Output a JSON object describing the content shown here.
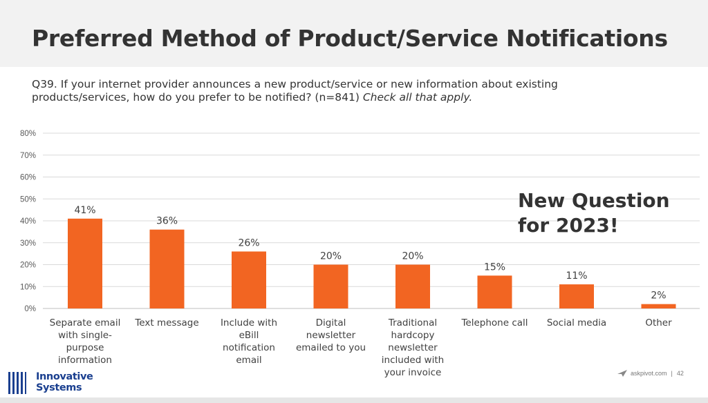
{
  "slide": {
    "title": "Preferred Method of Product/Service Notifications",
    "question": "Q39. If your internet provider announces a new product/service or new information about existing products/services, how do you prefer to be notified? (n=841)",
    "question_note": "Check all that apply.",
    "callout_line1": "New Question",
    "callout_line2": "for 2023!",
    "logo_line1": "Innovative",
    "logo_line2": "Systems",
    "footer_site": "askpivot.com",
    "footer_sep": "|",
    "page_number": "42"
  },
  "colors": {
    "bar": "#f26522",
    "title_band": "#f2f2f2",
    "logo": "#1a3f8f"
  },
  "chart_data": {
    "type": "bar",
    "categories": [
      [
        "Separate email",
        "with single-",
        "purpose",
        "information"
      ],
      [
        "Text message"
      ],
      [
        "Include with",
        "eBill",
        "notification",
        "email"
      ],
      [
        "Digital",
        "newsletter",
        "emailed to you"
      ],
      [
        "Traditional",
        "hardcopy",
        "newsletter",
        "included with",
        "your invoice"
      ],
      [
        "Telephone call"
      ],
      [
        "Social media"
      ],
      [
        "Other"
      ]
    ],
    "values": [
      41,
      36,
      26,
      20,
      20,
      15,
      11,
      2
    ],
    "data_labels": [
      "41%",
      "36%",
      "26%",
      "20%",
      "20%",
      "15%",
      "11%",
      "2%"
    ],
    "yticks": [
      "0%",
      "10%",
      "20%",
      "30%",
      "40%",
      "50%",
      "60%",
      "70%",
      "80%"
    ],
    "ylim": [
      0,
      80
    ],
    "grid": true,
    "legend": "none"
  }
}
